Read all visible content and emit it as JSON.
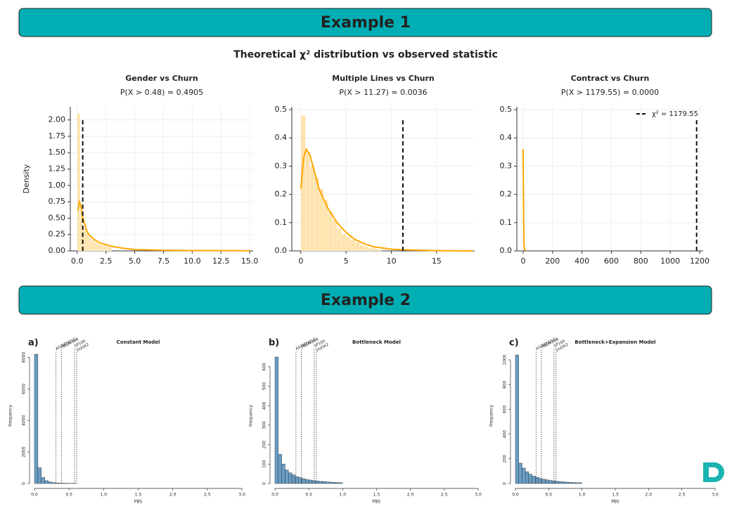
{
  "banners": [
    "Example 1",
    "Example 2"
  ],
  "figure_title": "Theoretical χ² distribution vs observed statistic",
  "chart_data": [
    {
      "type": "density",
      "title": "Gender vs Churn",
      "subtitle": "P(X > 0.48) = 0.4905",
      "ylabel": "Density",
      "xlim": [
        -0.6,
        15.3
      ],
      "xticks": [
        {
          "value": 0,
          "label": "0.0"
        },
        2.5,
        {
          "value": 5,
          "label": "5.0"
        },
        7.5,
        {
          "value": 10,
          "label": "10.0"
        },
        12.5,
        {
          "value": 15,
          "label": "15.0"
        }
      ],
      "ylim": [
        0,
        2.2
      ],
      "yticks": [
        {
          "value": 0,
          "label": "0.00"
        },
        {
          "value": 0.25,
          "label": "0.25"
        },
        {
          "value": 0.5,
          "label": "0.50"
        },
        {
          "value": 0.75,
          "label": "0.75"
        },
        {
          "value": 1,
          "label": "1.00"
        },
        {
          "value": 1.25,
          "label": "1.25"
        },
        {
          "value": 1.5,
          "label": "1.50"
        },
        {
          "value": 1.75,
          "label": "1.75"
        },
        {
          "value": 2,
          "label": "2.00"
        }
      ],
      "grid": true,
      "histogram": {
        "color": "#fde3ad",
        "bins": [
          0,
          0.25,
          0.5,
          0.75,
          1,
          1.25,
          1.5,
          1.75,
          2,
          2.25,
          2.5,
          2.75,
          3
        ],
        "counts": [
          2.1,
          0.6,
          0.35,
          0.27,
          0.2,
          0.16,
          0.13,
          0.11,
          0.09,
          0.08,
          0.07,
          0.06
        ]
      },
      "curve": {
        "color": "#ffa500",
        "x": [
          0.05,
          0.2,
          0.3,
          0.5,
          0.8,
          1,
          1.5,
          2,
          3,
          4,
          5,
          7.5,
          10,
          15
        ],
        "values": [
          0.62,
          0.75,
          0.7,
          0.5,
          0.32,
          0.25,
          0.17,
          0.12,
          0.07,
          0.04,
          0.02,
          0.01,
          0.005,
          0.003
        ]
      },
      "observed": {
        "value": 0.48
      }
    },
    {
      "type": "density",
      "title": "Multiple Lines vs Churn",
      "subtitle": "P(X > 11.27) = 0.0036",
      "xlim": [
        -1,
        19.2
      ],
      "xticks": [
        0,
        5,
        10,
        15
      ],
      "ylim": [
        0,
        0.51
      ],
      "yticks": [
        {
          "value": 0,
          "label": "0.0"
        },
        0.1,
        0.2,
        0.3,
        0.4,
        0.5
      ],
      "grid": true,
      "histogram": {
        "color": "#fde3ad",
        "bins": [
          0,
          0.5,
          1,
          1.5,
          2,
          2.5,
          3,
          3.5,
          4,
          4.5,
          5,
          5.5,
          6,
          6.5,
          7,
          7.5,
          8,
          8.5,
          9
        ],
        "counts": [
          0.48,
          0.35,
          0.3,
          0.26,
          0.22,
          0.18,
          0.14,
          0.11,
          0.08,
          0.06,
          0.05,
          0.04,
          0.03,
          0.02,
          0.015,
          0.01,
          0.008,
          0.005
        ]
      },
      "curve": {
        "color": "#ffa500",
        "x": [
          0,
          0.3,
          0.6,
          1,
          1.5,
          2,
          3,
          4,
          5,
          6,
          7,
          8,
          10,
          12,
          15,
          19
        ],
        "values": [
          0.22,
          0.33,
          0.36,
          0.34,
          0.28,
          0.22,
          0.15,
          0.1,
          0.065,
          0.04,
          0.025,
          0.015,
          0.006,
          0.003,
          0.001,
          0
        ]
      },
      "observed": {
        "value": 11.27
      }
    },
    {
      "type": "density",
      "title": "Contract vs Churn",
      "subtitle": "P(X > 1179.55) = 0.0000",
      "xlim": [
        -43,
        1224
      ],
      "xticks": [
        0,
        200,
        400,
        600,
        800,
        1000,
        1200
      ],
      "ylim": [
        0,
        0.51
      ],
      "yticks": [
        {
          "value": 0,
          "label": "0.0"
        },
        0.1,
        0.2,
        0.3,
        0.4,
        0.5
      ],
      "grid": true,
      "legend": "upper right",
      "curve": {
        "color": "#ffa500",
        "x": [
          0,
          2,
          4,
          6,
          8,
          10,
          15
        ],
        "values": [
          0.36,
          0.2,
          0.08,
          0.03,
          0.01,
          0.005,
          0.001
        ]
      },
      "observed": {
        "value": 1179.55,
        "name": "χ² = 1179.55"
      }
    },
    {
      "type": "histogram",
      "panel": "a)",
      "title": "Constant Model",
      "xlabel": "PBS",
      "ylabel": "Frequency",
      "color": "#6a9ec5",
      "xlim": [
        0,
        3
      ],
      "xticks": [
        {
          "value": 0,
          "label": "0.0"
        },
        0.5,
        {
          "value": 1,
          "label": "1.0"
        },
        1.5,
        {
          "value": 2,
          "label": "2.0"
        },
        2.5,
        {
          "value": 3,
          "label": "3.0"
        }
      ],
      "ylim": [
        0,
        8600
      ],
      "yticks": [
        0,
        2000,
        4000,
        6000,
        8000
      ],
      "bins": [
        0,
        0.05,
        0.1,
        0.15,
        0.2,
        0.25,
        0.3,
        0.35,
        0.4,
        0.45,
        0.5,
        0.55,
        0.6
      ],
      "counts": [
        8200,
        1000,
        380,
        180,
        100,
        60,
        40,
        30,
        20,
        15,
        12,
        10
      ],
      "markers": [
        {
          "label": "AS3MT/CLC",
          "value": 0.31
        },
        {
          "label": "TMEM38B",
          "value": 0.39
        },
        {
          "label": "SP100",
          "value": 0.58
        },
        {
          "label": "DUOX2",
          "value": 0.61
        }
      ]
    },
    {
      "type": "histogram",
      "panel": "b)",
      "title": "Bottleneck Model",
      "xlabel": "PBS",
      "ylabel": "Frequency",
      "color": "#6a9ec5",
      "xlim": [
        0,
        3
      ],
      "xticks": [
        {
          "value": 0,
          "label": "0.0"
        },
        0.5,
        {
          "value": 1,
          "label": "1.0"
        },
        1.5,
        {
          "value": 2,
          "label": "2.0"
        },
        2.5,
        {
          "value": 3,
          "label": "3.0"
        }
      ],
      "ylim": [
        0,
        697
      ],
      "yticks": [
        0,
        100,
        200,
        300,
        400,
        500,
        600
      ],
      "bins": [
        0,
        0.05,
        0.1,
        0.15,
        0.2,
        0.25,
        0.3,
        0.35,
        0.4,
        0.45,
        0.5,
        0.55,
        0.6,
        0.65,
        0.7,
        0.75,
        0.8,
        0.85,
        0.9,
        0.95,
        1
      ],
      "counts": [
        650,
        150,
        100,
        70,
        55,
        45,
        35,
        30,
        25,
        20,
        18,
        15,
        13,
        11,
        10,
        8,
        7,
        6,
        5,
        4
      ],
      "markers": [
        {
          "label": "AS3MT/CLC",
          "value": 0.31
        },
        {
          "label": "TMEM38B",
          "value": 0.39
        },
        {
          "label": "SP100",
          "value": 0.58
        },
        {
          "label": "DUOX2",
          "value": 0.61
        }
      ]
    },
    {
      "type": "histogram",
      "panel": "c)",
      "title": "Bottleneck+Expansion Model",
      "xlabel": "PBS",
      "ylabel": "Frequency",
      "color": "#6a9ec5",
      "xlim": [
        0,
        3
      ],
      "xticks": [
        {
          "value": 0,
          "label": "0.0"
        },
        0.5,
        {
          "value": 1,
          "label": "1.0"
        },
        1.5,
        {
          "value": 2,
          "label": "2.0"
        },
        2.5,
        {
          "value": 3,
          "label": "3.0"
        }
      ],
      "ylim": [
        0,
        1097
      ],
      "yticks": [
        0,
        200,
        400,
        600,
        800,
        1000
      ],
      "bins": [
        0,
        0.05,
        0.1,
        0.15,
        0.2,
        0.25,
        0.3,
        0.35,
        0.4,
        0.45,
        0.5,
        0.55,
        0.6,
        0.65,
        0.7,
        0.75,
        0.8,
        0.85,
        0.9,
        0.95,
        1
      ],
      "counts": [
        1040,
        165,
        125,
        95,
        75,
        60,
        50,
        42,
        35,
        30,
        25,
        22,
        18,
        15,
        13,
        11,
        9,
        8,
        7,
        6
      ],
      "markers": [
        {
          "label": "AS3MT/CLC",
          "value": 0.31
        },
        {
          "label": "TMEM38B",
          "value": 0.39
        },
        {
          "label": "SP100",
          "value": 0.58
        },
        {
          "label": "DUOX2",
          "value": 0.61
        }
      ]
    }
  ]
}
